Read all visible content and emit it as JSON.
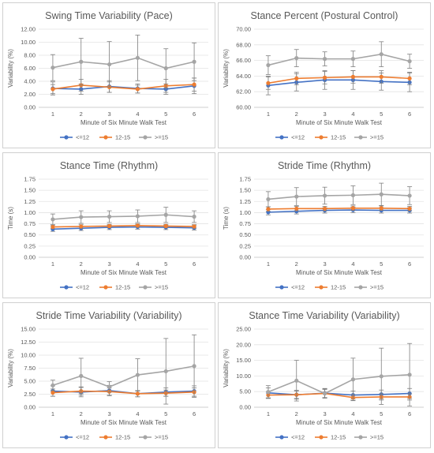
{
  "legend_labels": [
    "<=12",
    "12-15",
    ">=15"
  ],
  "colors": [
    "#4472c4",
    "#ed7d31",
    "#a5a5a5"
  ],
  "chart_data": [
    {
      "type": "line",
      "title": "Swing Time Variability (Pace)",
      "xlabel": "Minute of Six Minute Walk Test",
      "ylabel": "Variability (%)",
      "x": [
        1,
        2,
        3,
        4,
        5,
        6
      ],
      "ylim": [
        0,
        12
      ],
      "yticks": [
        "0.00",
        "2.00",
        "4.00",
        "6.00",
        "8.00",
        "10.00",
        "12.00"
      ],
      "series": [
        {
          "name": "<=12",
          "values": [
            2.9,
            2.8,
            3.2,
            2.9,
            2.8,
            3.3
          ],
          "errors": [
            1.0,
            0.8,
            0.9,
            0.7,
            0.8,
            1.2
          ]
        },
        {
          "name": "12-15",
          "values": [
            2.8,
            3.4,
            3.1,
            2.8,
            3.3,
            3.5
          ],
          "errors": [
            0.7,
            0.9,
            0.8,
            0.6,
            1.0,
            1.0
          ]
        },
        {
          "name": ">=15",
          "values": [
            6.1,
            7.0,
            6.6,
            7.6,
            6.0,
            7.0
          ],
          "errors": [
            2.0,
            3.6,
            3.5,
            3.5,
            3.0,
            2.9
          ]
        }
      ]
    },
    {
      "type": "line",
      "title": "Stance Percent (Postural Control)",
      "xlabel": "Minute of Six Minute Walk Test",
      "ylabel": "Variability (%)",
      "x": [
        1,
        2,
        3,
        4,
        5,
        6
      ],
      "ylim": [
        60,
        70
      ],
      "yticks": [
        "60.00",
        "62.00",
        "64.00",
        "66.00",
        "68.00",
        "70.00"
      ],
      "series": [
        {
          "name": "<=12",
          "values": [
            62.8,
            63.2,
            63.5,
            63.5,
            63.3,
            63.2
          ],
          "errors": [
            1.2,
            1.1,
            1.2,
            1.2,
            1.1,
            1.2
          ]
        },
        {
          "name": "12-15",
          "values": [
            63.1,
            63.7,
            63.8,
            63.9,
            63.9,
            63.7
          ],
          "errors": [
            0.8,
            0.8,
            0.8,
            0.8,
            0.8,
            0.8
          ]
        },
        {
          "name": ">=15",
          "values": [
            65.4,
            66.3,
            66.2,
            66.2,
            66.8,
            65.9
          ],
          "errors": [
            1.2,
            1.1,
            0.9,
            1.0,
            1.6,
            0.9
          ]
        }
      ]
    },
    {
      "type": "line",
      "title": "Stance Time (Rhythm)",
      "xlabel": "Minute of Six Minute Walk Test",
      "ylabel": "Time (s)",
      "x": [
        1,
        2,
        3,
        4,
        5,
        6
      ],
      "ylim": [
        0,
        1.75
      ],
      "yticks": [
        "0.00",
        "0.25",
        "0.50",
        "0.75",
        "1.00",
        "1.25",
        "1.50",
        "1.75"
      ],
      "series": [
        {
          "name": "<=12",
          "values": [
            0.63,
            0.65,
            0.67,
            0.68,
            0.67,
            0.66
          ],
          "errors": [
            0.05,
            0.05,
            0.05,
            0.05,
            0.05,
            0.05
          ]
        },
        {
          "name": "12-15",
          "values": [
            0.68,
            0.69,
            0.7,
            0.71,
            0.7,
            0.69
          ],
          "errors": [
            0.04,
            0.04,
            0.04,
            0.04,
            0.04,
            0.04
          ]
        },
        {
          "name": ">=15",
          "values": [
            0.85,
            0.9,
            0.91,
            0.92,
            0.95,
            0.91
          ],
          "errors": [
            0.12,
            0.14,
            0.13,
            0.14,
            0.17,
            0.13
          ]
        }
      ]
    },
    {
      "type": "line",
      "title": "Stride Time (Rhythm)",
      "xlabel": "Minute of Six Minute Walk Test",
      "ylabel": "Time (s)",
      "x": [
        1,
        2,
        3,
        4,
        5,
        6
      ],
      "ylim": [
        0,
        1.75
      ],
      "yticks": [
        "0.00",
        "0.25",
        "0.50",
        "0.75",
        "1.00",
        "1.25",
        "1.50",
        "1.75"
      ],
      "series": [
        {
          "name": "<=12",
          "values": [
            1.01,
            1.03,
            1.05,
            1.06,
            1.05,
            1.05
          ],
          "errors": [
            0.06,
            0.06,
            0.06,
            0.06,
            0.06,
            0.06
          ]
        },
        {
          "name": "12-15",
          "values": [
            1.08,
            1.09,
            1.09,
            1.1,
            1.1,
            1.09
          ],
          "errors": [
            0.05,
            0.05,
            0.05,
            0.05,
            0.05,
            0.05
          ]
        },
        {
          "name": ">=15",
          "values": [
            1.3,
            1.36,
            1.38,
            1.39,
            1.41,
            1.38
          ],
          "errors": [
            0.17,
            0.2,
            0.19,
            0.21,
            0.25,
            0.2
          ]
        }
      ]
    },
    {
      "type": "line",
      "title": "Stride Time Variability (Variability)",
      "xlabel": "Minute of Six Minute Walk Test",
      "ylabel": "Variability (%)",
      "x": [
        1,
        2,
        3,
        4,
        5,
        6
      ],
      "ylim": [
        0,
        15
      ],
      "yticks": [
        "0.00",
        "2.50",
        "5.00",
        "7.50",
        "10.00",
        "12.50",
        "15.00"
      ],
      "series": [
        {
          "name": "<=12",
          "values": [
            3.1,
            2.9,
            3.2,
            2.6,
            2.9,
            3.1
          ],
          "errors": [
            1.0,
            0.9,
            1.0,
            0.6,
            0.8,
            1.0
          ]
        },
        {
          "name": "12-15",
          "values": [
            2.8,
            3.1,
            3.0,
            2.6,
            2.7,
            2.9
          ],
          "errors": [
            0.7,
            0.8,
            0.7,
            0.6,
            0.6,
            0.8
          ]
        },
        {
          "name": ">=15",
          "values": [
            4.2,
            6.0,
            3.9,
            6.2,
            6.9,
            7.9
          ],
          "errors": [
            1.0,
            3.4,
            1.0,
            3.1,
            6.3,
            6.0
          ]
        }
      ]
    },
    {
      "type": "line",
      "title": "Stance Time Variability (Variability)",
      "xlabel": "Minute of Six Minute Walk Test",
      "ylabel": "Variability (%)",
      "x": [
        1,
        2,
        3,
        4,
        5,
        6
      ],
      "ylim": [
        0,
        25
      ],
      "yticks": [
        "0.00",
        "5.00",
        "10.00",
        "15.00",
        "20.00",
        "25.00"
      ],
      "series": [
        {
          "name": "<=12",
          "values": [
            4.6,
            4.0,
            4.5,
            3.9,
            4.1,
            4.4
          ],
          "errors": [
            1.6,
            1.4,
            1.5,
            1.3,
            1.4,
            1.6
          ]
        },
        {
          "name": "12-15",
          "values": [
            3.9,
            4.0,
            4.4,
            3.1,
            3.3,
            3.3
          ],
          "errors": [
            1.1,
            1.2,
            1.3,
            0.9,
            1.0,
            1.0
          ]
        },
        {
          "name": ">=15",
          "values": [
            4.9,
            8.5,
            4.4,
            8.9,
            9.9,
            10.4
          ],
          "errors": [
            2.0,
            6.5,
            1.5,
            6.8,
            9.0,
            10.0
          ]
        }
      ]
    }
  ]
}
